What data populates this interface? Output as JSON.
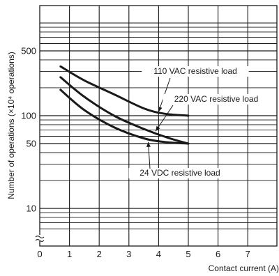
{
  "chart_data": {
    "type": "line",
    "xlabel": "Contact current (A)",
    "ylabel": "Number of operations (×10⁴ operations)",
    "xlim": [
      0,
      8
    ],
    "ylim": [
      2,
      1000
    ],
    "y_scale": "log",
    "y_axis_break": true,
    "grid": true,
    "x_ticks": [
      "0",
      "1",
      "2",
      "3",
      "4",
      "5",
      "6",
      "7"
    ],
    "y_ticks": [
      {
        "value": 10,
        "label": "10"
      },
      {
        "value": 50,
        "label": "50"
      },
      {
        "value": 100,
        "label": "100"
      },
      {
        "value": 500,
        "label": "500"
      }
    ],
    "series": [
      {
        "name": "110 VAC resistive load",
        "x": [
          0.7,
          1.5,
          2.5,
          3.5,
          4.2,
          5.0
        ],
        "y": [
          340,
          240,
          170,
          120,
          105,
          100
        ]
      },
      {
        "name": "220 VAC resistive load",
        "x": [
          0.7,
          1.5,
          2.5,
          3.5,
          4.3,
          5.0
        ],
        "y": [
          260,
          160,
          100,
          72,
          58,
          50
        ]
      },
      {
        "name": "24 VDC resistive load",
        "x": [
          0.7,
          1.5,
          2.5,
          3.5,
          4.2,
          5.0
        ],
        "y": [
          190,
          115,
          75,
          57,
          52,
          50
        ]
      }
    ]
  }
}
